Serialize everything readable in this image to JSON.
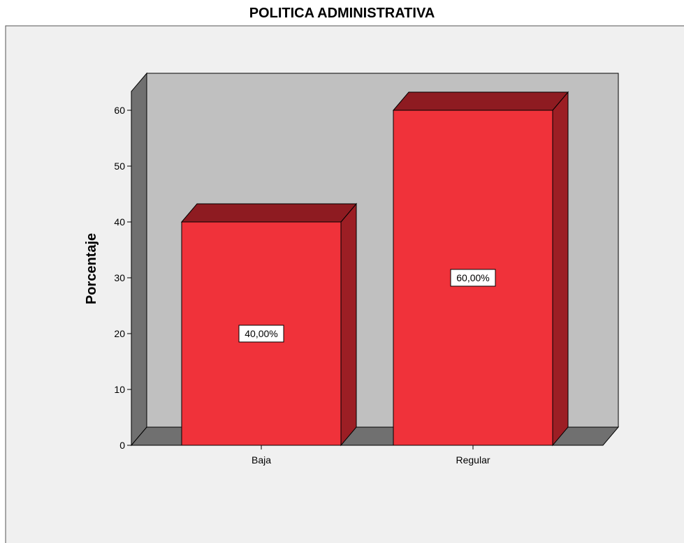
{
  "chart_data": {
    "type": "bar",
    "title": "POLITICA ADMINISTRATIVA",
    "xlabel": "",
    "ylabel": "Porcentaje",
    "categories": [
      "Baja",
      "Regular"
    ],
    "values": [
      40,
      60
    ],
    "data_labels": [
      "40,00%",
      "60,00%"
    ],
    "ylim": [
      0,
      65
    ],
    "yticks": [
      0,
      10,
      20,
      30,
      40,
      50,
      60
    ],
    "grid": false,
    "legend": "none",
    "style": "3d",
    "colors": {
      "bar_front": "#f0323a",
      "bar_top": "#8e1b21",
      "bar_side": "#9c1e24",
      "plot_back": "#c0c0c0",
      "floor": "#707070",
      "left_wall": "#707070",
      "frame_bg": "#f0f0f0"
    }
  }
}
